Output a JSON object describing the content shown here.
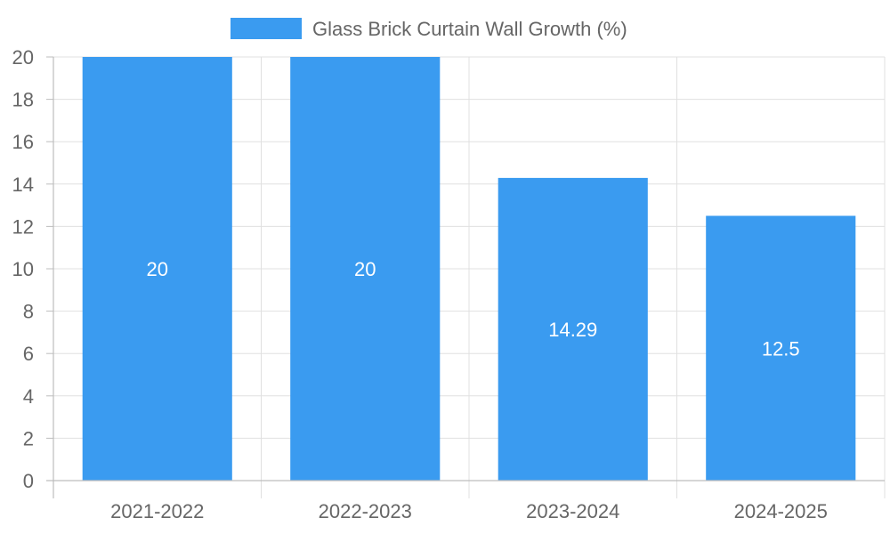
{
  "chart_data": {
    "type": "bar",
    "categories": [
      "2021-2022",
      "2022-2023",
      "2023-2024",
      "2024-2025"
    ],
    "series": [
      {
        "name": "Glass Brick Curtain Wall Growth (%)",
        "values": [
          20,
          20,
          14.29,
          12.5
        ],
        "color": "#3a9bf0"
      }
    ],
    "data_labels": [
      "20",
      "20",
      "14.29",
      "12.5"
    ],
    "y_ticks": [
      "0",
      "2",
      "4",
      "6",
      "8",
      "10",
      "12",
      "14",
      "16",
      "18",
      "20"
    ],
    "ylim": [
      0,
      20
    ],
    "ytick_step": 2,
    "xlabel": "",
    "ylabel": "",
    "grid": true,
    "legend_position": "top-center"
  },
  "colors": {
    "bar": "#3a9bf0",
    "grid": "#e0e0e0",
    "axis": "#bdbdbd",
    "text": "#666666",
    "data_label": "#ffffff"
  }
}
